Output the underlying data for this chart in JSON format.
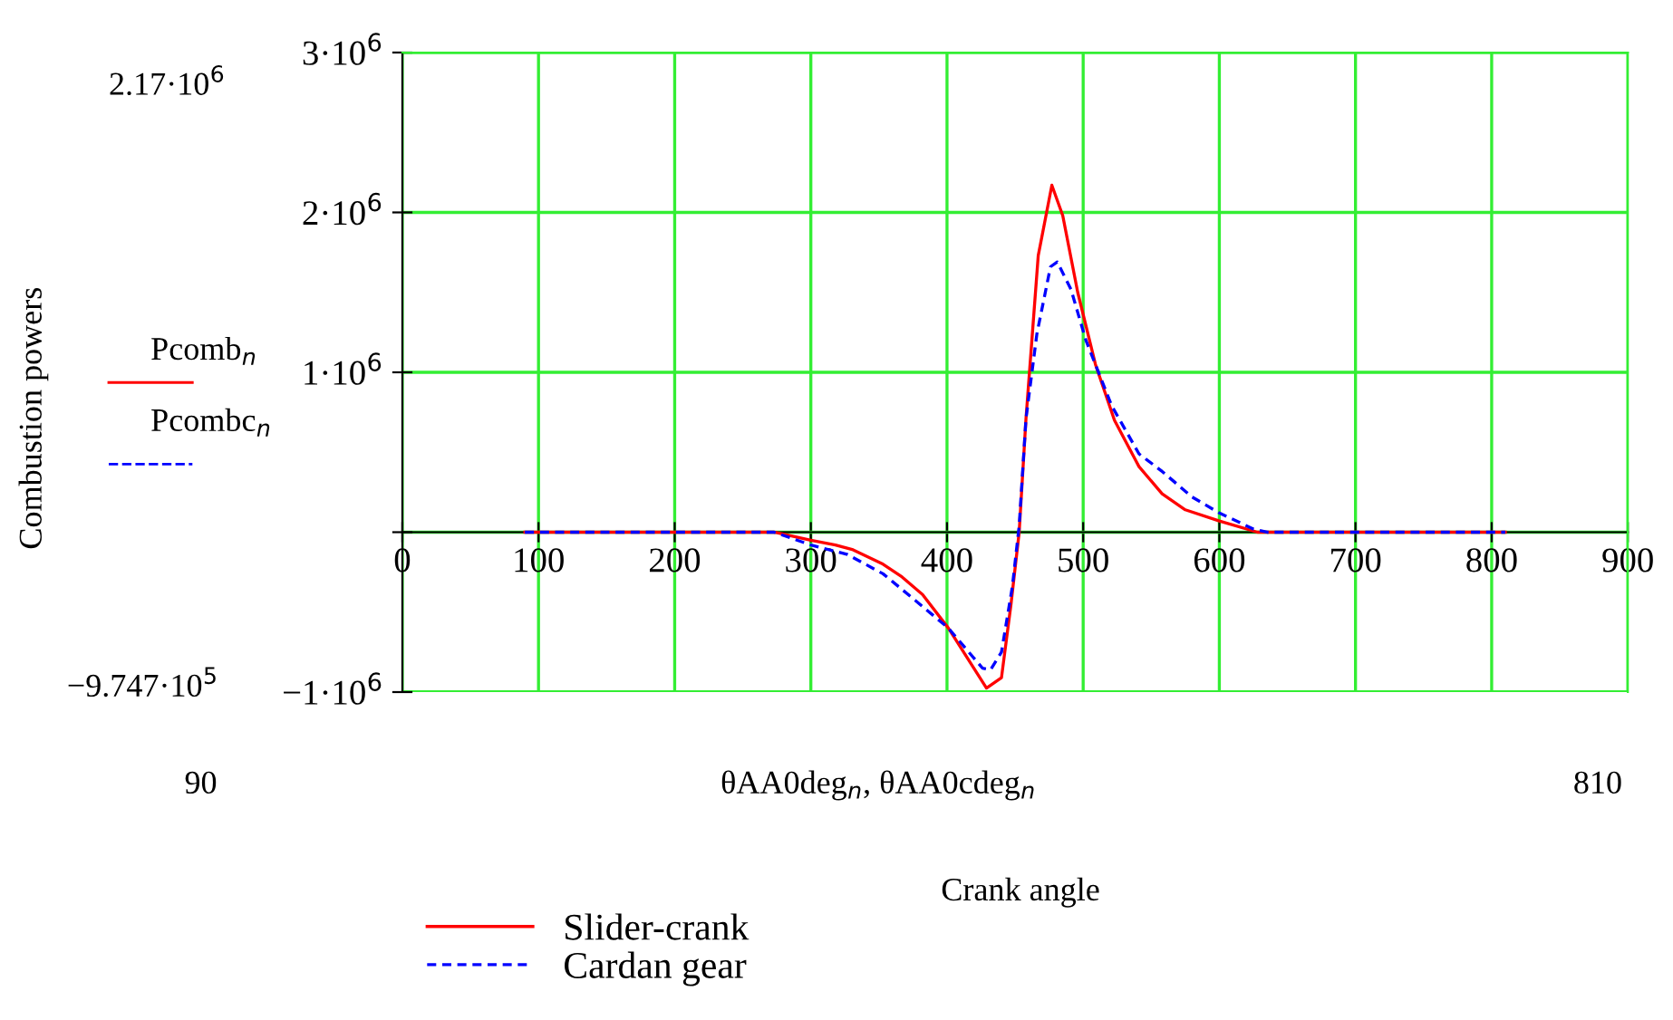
{
  "chart_data": {
    "type": "line",
    "xlim": [
      0,
      900
    ],
    "xticks": [
      0,
      100,
      200,
      300,
      400,
      500,
      600,
      700,
      800,
      900
    ],
    "ylim": [
      -1000000,
      3000000
    ],
    "yticks": [
      {
        "value": -1000000,
        "label": "−1·10$^{6}$"
      },
      {
        "value": 0,
        "label": null
      },
      {
        "value": 1000000,
        "label": "1·10$^{6}$"
      },
      {
        "value": 2000000,
        "label": "2·10$^{6}$"
      },
      {
        "value": 3000000,
        "label": "3·10$^{6}$"
      }
    ],
    "grid": true,
    "legend": "bottom",
    "marker": "none",
    "annotations": [
      "2.17·10$^{6}$",
      "−9.747·10$^{5}$",
      "90",
      "810",
      "θAA0deg$_{n}$, θAA0cdeg$_{n}$",
      "Pcomb$_{n}$",
      "Pcombc$_{n}$",
      "Crank angle",
      "Combustion powers"
    ],
    "series": [
      {
        "name": "Slider-crank",
        "color": "#ff0000",
        "line_style": "solid",
        "x": [
          90,
          273,
          300,
          318,
          331,
          353,
          367,
          382,
          401,
          429,
          440,
          447,
          453,
          458,
          467,
          477,
          485,
          496,
          509,
          523,
          541,
          558,
          575,
          600,
          628,
          810
        ],
        "values": [
          0,
          0,
          -50000,
          -80000,
          -110000,
          -200000,
          -280000,
          -390000,
          -600000,
          -974700,
          -910000,
          -450000,
          0,
          710000,
          1730000,
          2170000,
          1980000,
          1500000,
          1050000,
          700000,
          410000,
          240000,
          140000,
          70000,
          0,
          0
        ]
      },
      {
        "name": "Cardan gear",
        "color": "#0000ff",
        "line_style": "dashed",
        "x": [
          90,
          273,
          300,
          327,
          353,
          380,
          401,
          426,
          432,
          440,
          448,
          453,
          458,
          466,
          476,
          481,
          491,
          502,
          521,
          541,
          558,
          580,
          600,
          625,
          635,
          810
        ],
        "values": [
          0,
          0,
          -80000,
          -140000,
          -260000,
          -450000,
          -600000,
          -850000,
          -860000,
          -750000,
          -340000,
          40000,
          710000,
          1240000,
          1660000,
          1690000,
          1520000,
          1200000,
          790000,
          490000,
          380000,
          220000,
          120000,
          20000,
          0,
          0
        ]
      }
    ]
  }
}
